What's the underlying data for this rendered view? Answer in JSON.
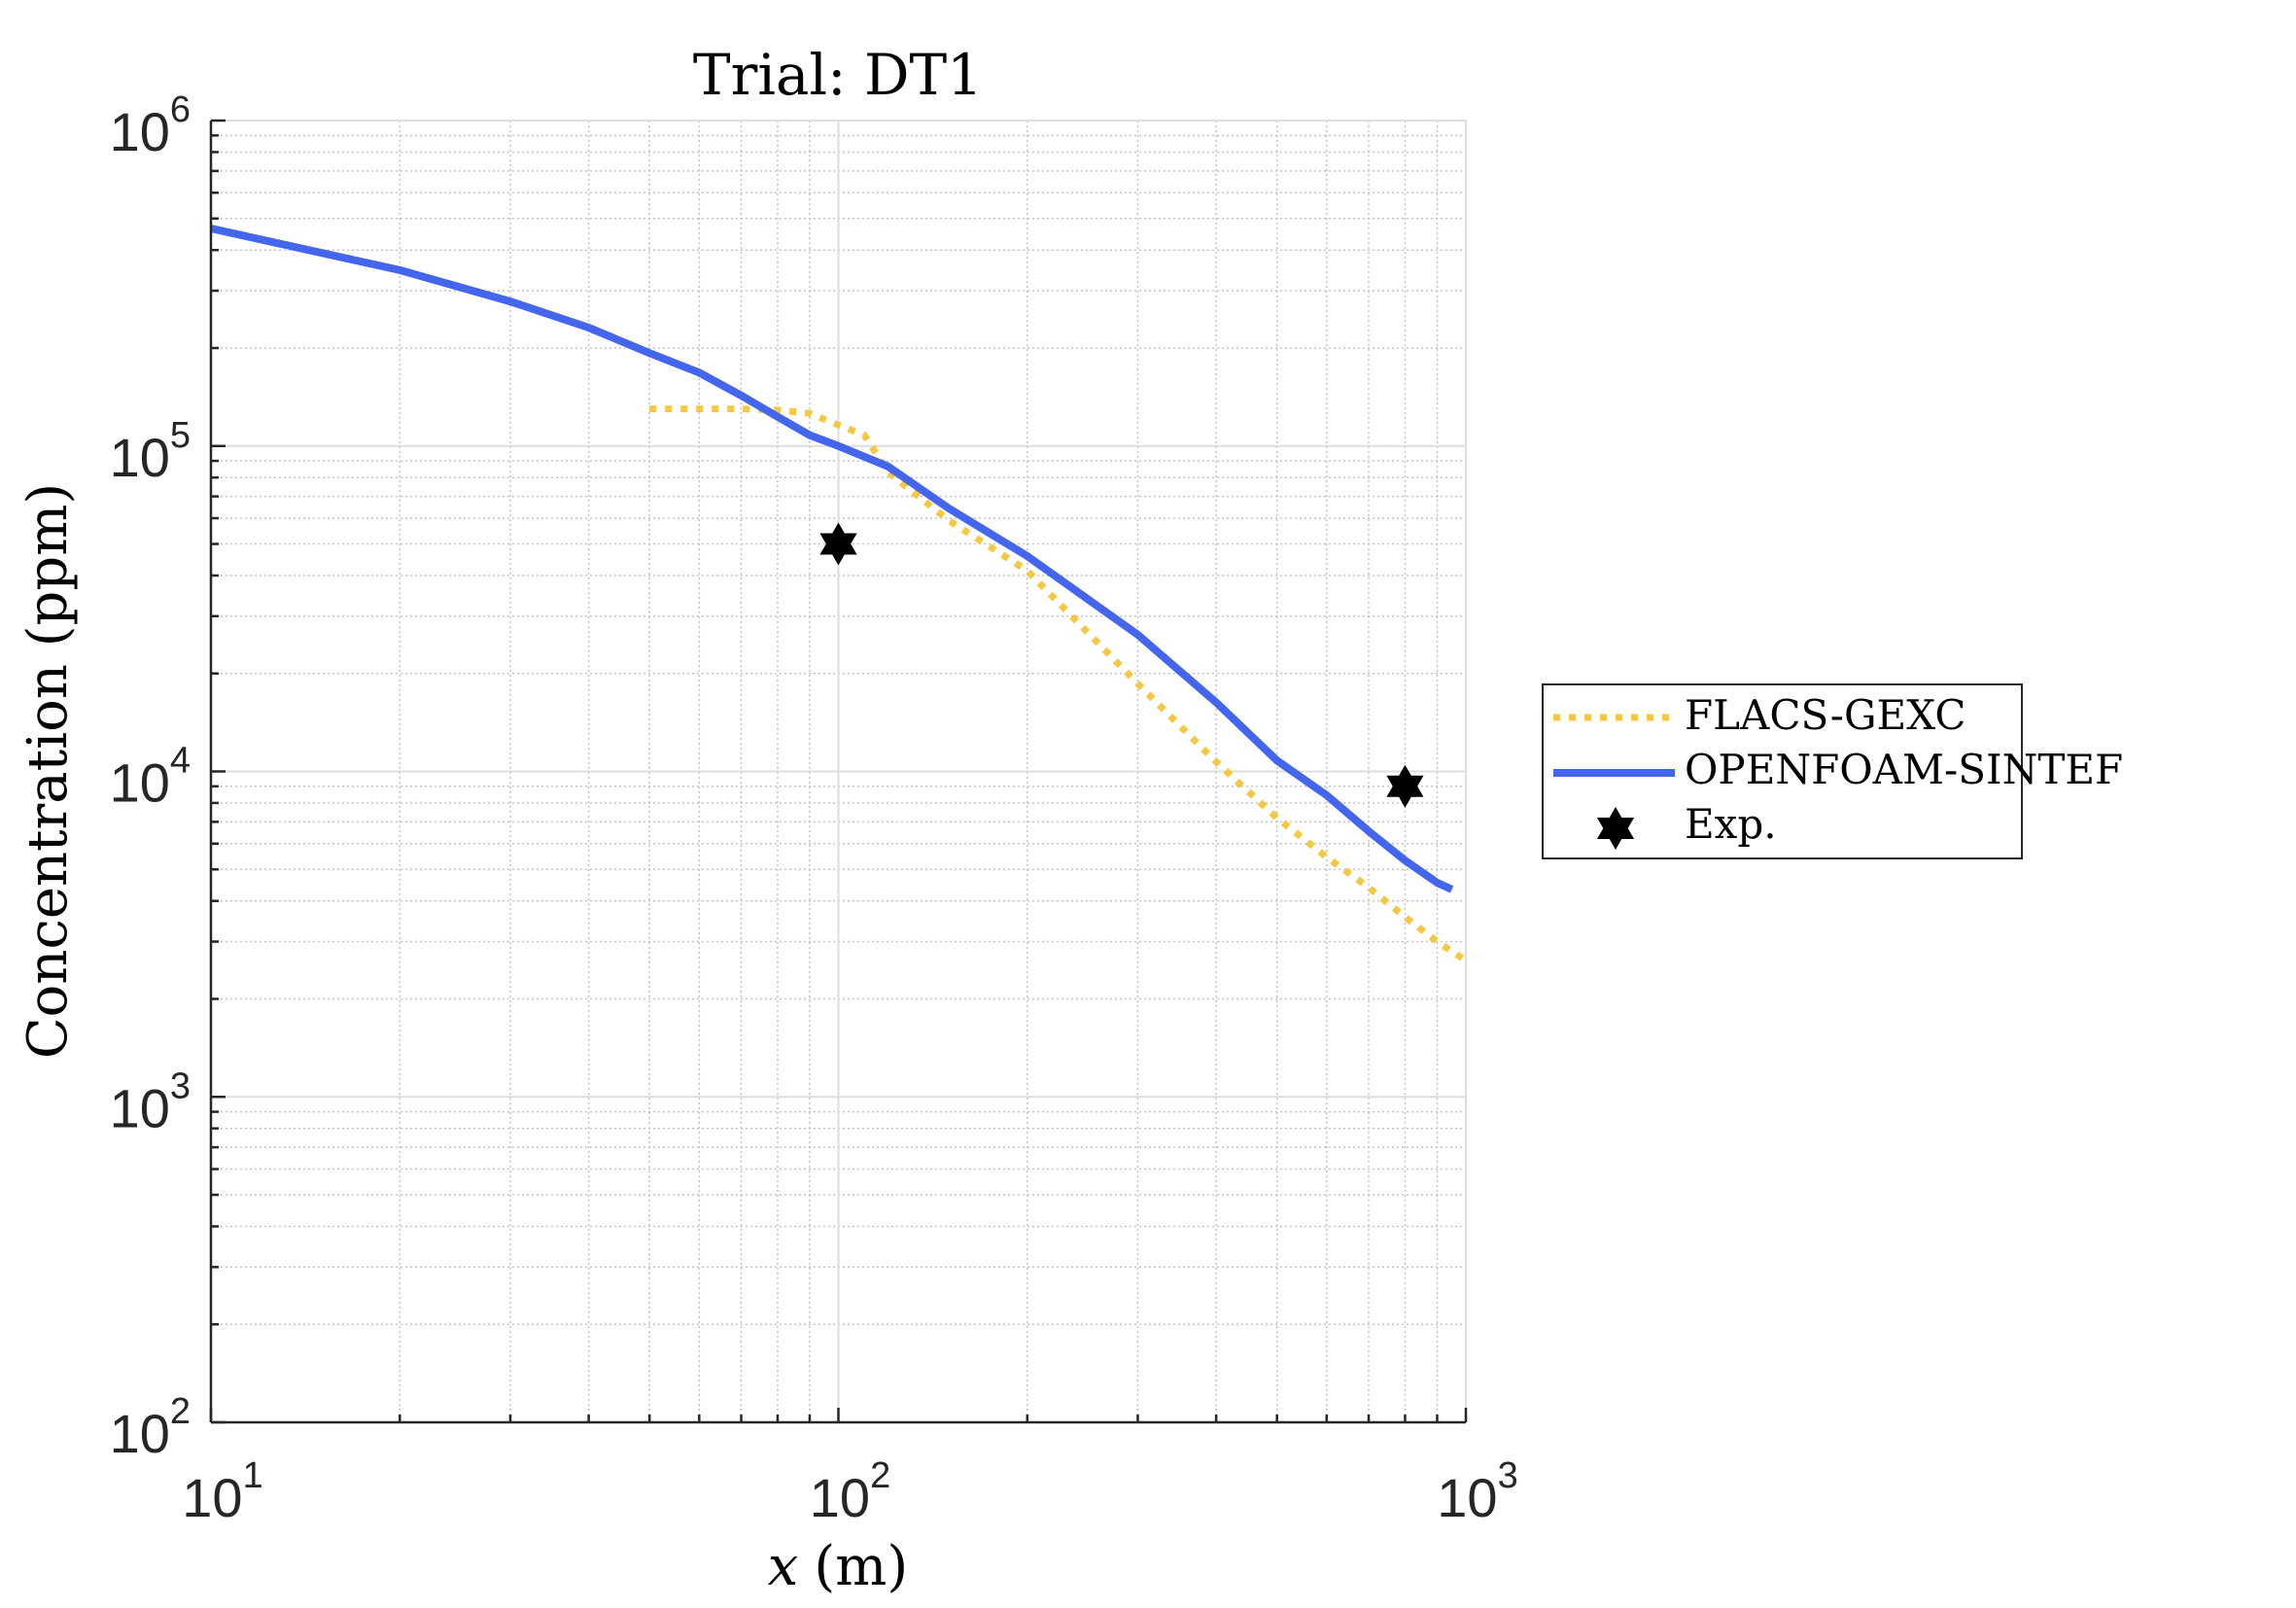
{
  "chart_data": {
    "type": "line",
    "title": "Trial: DT1",
    "xlabel": "x (m)",
    "xlabel_var": "x",
    "xlabel_unit": "(m)",
    "ylabel": "Concentration (ppm)",
    "xscale": "log",
    "yscale": "log",
    "xlim": [
      10,
      1000
    ],
    "ylim": [
      100,
      1000000
    ],
    "grid": true,
    "minor_grid": true,
    "legend_position": "outside-right",
    "x_ticks": [
      {
        "value": 10,
        "base": "10",
        "exp": "1"
      },
      {
        "value": 100,
        "base": "10",
        "exp": "2"
      },
      {
        "value": 1000,
        "base": "10",
        "exp": "3"
      }
    ],
    "y_ticks": [
      {
        "value": 100,
        "base": "10",
        "exp": "2"
      },
      {
        "value": 1000,
        "base": "10",
        "exp": "3"
      },
      {
        "value": 10000,
        "base": "10",
        "exp": "4"
      },
      {
        "value": 100000,
        "base": "10",
        "exp": "5"
      },
      {
        "value": 1000000,
        "base": "10",
        "exp": "6"
      }
    ],
    "series": [
      {
        "name": "FLACS-GEXC",
        "style": "dotted",
        "color": "#F4C842",
        "x": [
          50,
          60,
          70,
          80,
          90,
          100,
          110,
          120,
          150,
          200,
          300,
          400,
          500,
          600,
          700,
          800,
          900,
          1000
        ],
        "y": [
          130000,
          130000,
          130000,
          129000,
          126000,
          116000,
          108000,
          83000,
          59000,
          41400,
          18600,
          10700,
          7200,
          5450,
          4400,
          3570,
          3000,
          2620
        ]
      },
      {
        "name": "OPENFOAM-SINTEF",
        "style": "solid",
        "color": "#4466EE",
        "x": [
          10,
          20,
          30,
          40,
          50,
          60,
          70,
          80,
          90,
          100,
          120,
          150,
          200,
          300,
          400,
          500,
          600,
          700,
          800,
          900,
          950
        ],
        "y": [
          466000,
          347000,
          278000,
          231000,
          193000,
          168000,
          143000,
          123000,
          108000,
          100000,
          86500,
          64300,
          45900,
          26300,
          16300,
          10800,
          8450,
          6550,
          5330,
          4550,
          4340
        ]
      },
      {
        "name": "Exp.",
        "style": "marker",
        "marker": "hexagram",
        "color": "#000000",
        "x": [
          100,
          800
        ],
        "y": [
          50000,
          9000
        ]
      }
    ]
  }
}
